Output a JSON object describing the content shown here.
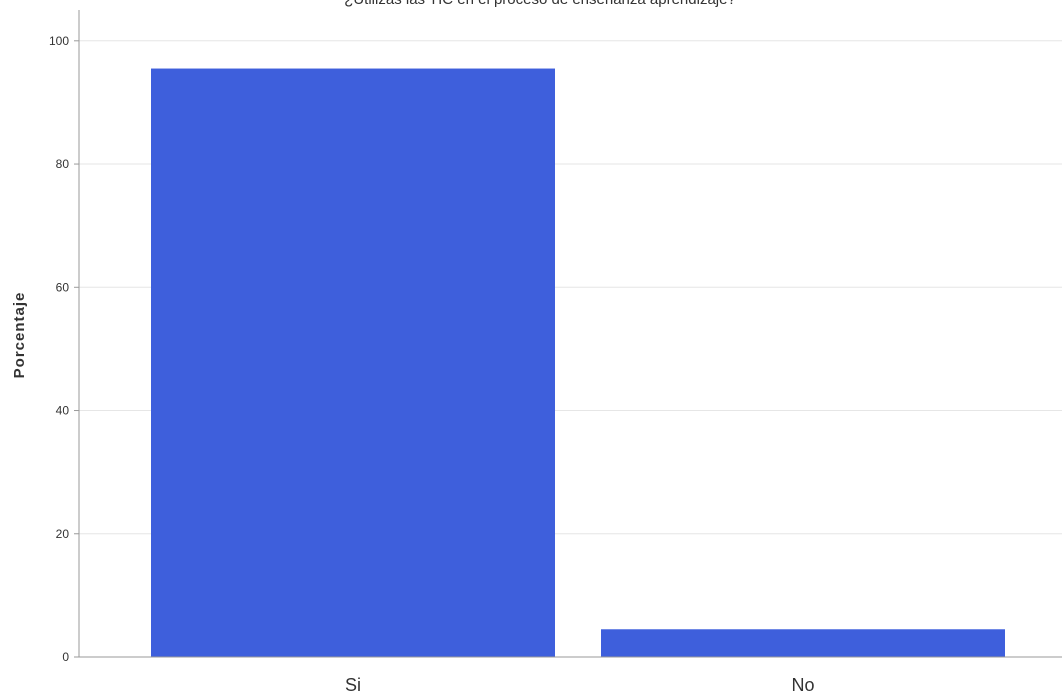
{
  "chart_data": {
    "type": "bar",
    "title": "¿Utilizas las TIC en el proceso de enseñanza aprendizaje?",
    "xlabel": "",
    "ylabel": "Porcentaje",
    "categories": [
      "Si",
      "No"
    ],
    "values": [
      95.5,
      4.5
    ],
    "yticks": [
      "0",
      "20",
      "40",
      "60",
      "80",
      "100"
    ],
    "ylim": [
      0,
      105
    ],
    "grid": true,
    "bar_color": "#3e5fdc",
    "grid_color": "#e6e6e6",
    "axis_color": "#9a9a9a"
  }
}
